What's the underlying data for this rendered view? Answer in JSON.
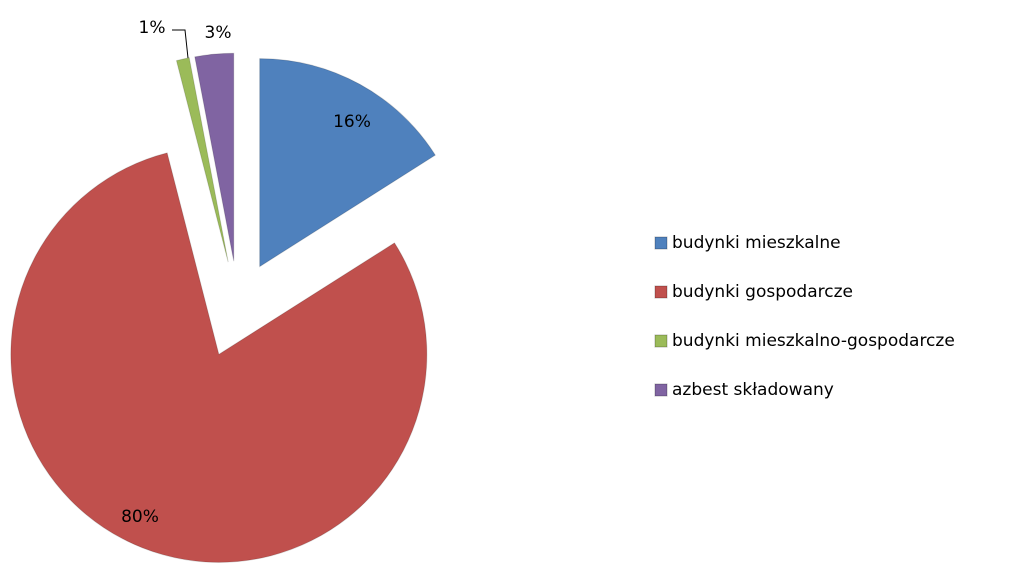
{
  "chart_data": {
    "type": "pie",
    "categories": [
      "budynki mieszkalne",
      "budynki gospodarcze",
      "budynki mieszkalno-gospodarcze",
      "azbest składowany"
    ],
    "values": [
      16,
      80,
      1,
      3
    ],
    "value_labels": [
      "16%",
      "80%",
      "1%",
      "3%"
    ],
    "colors": [
      "#4f81bd",
      "#c0504d",
      "#9bbb59",
      "#8064a2"
    ],
    "legend": "right"
  }
}
